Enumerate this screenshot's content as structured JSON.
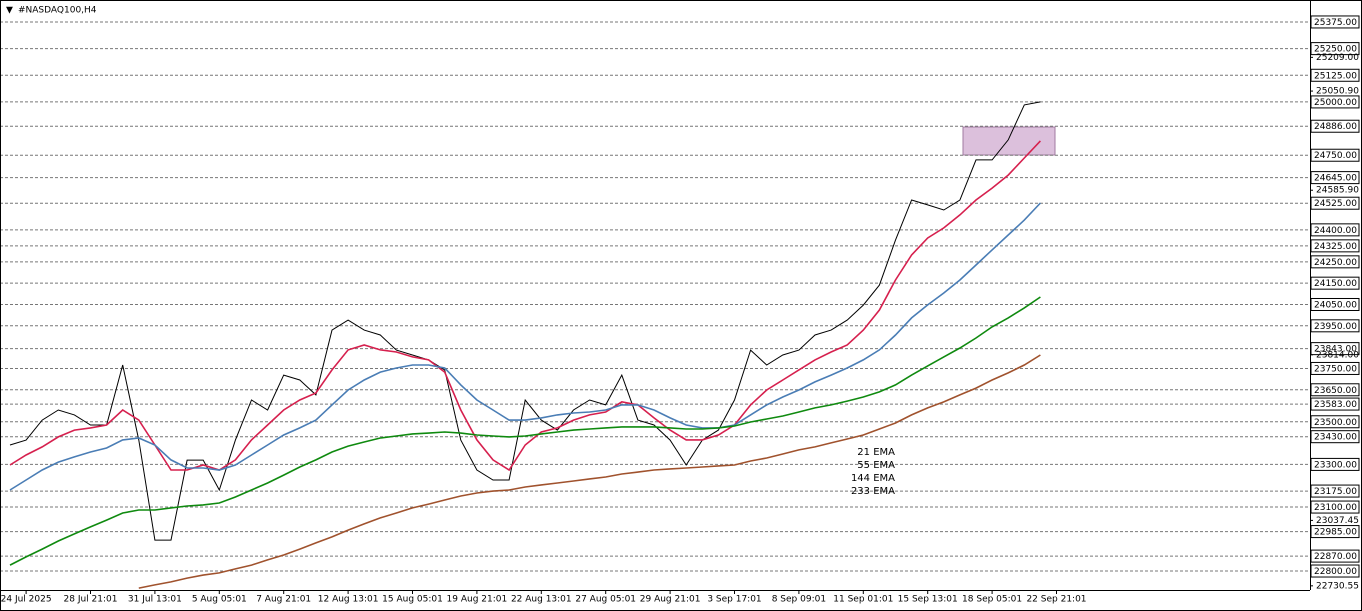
{
  "chart_data": {
    "type": "line",
    "title": "#NASDAQ100,H4",
    "categories": [
      null,
      "24 Jul 2025",
      null,
      null,
      null,
      "28 Jul 21:01",
      null,
      null,
      null,
      "31 Jul 13:01",
      null,
      null,
      null,
      "5 Aug 05:01",
      null,
      null,
      null,
      "7 Aug 21:01",
      null,
      null,
      null,
      "12 Aug 13:01",
      null,
      null,
      null,
      "15 Aug 05:01",
      null,
      null,
      null,
      "19 Aug 21:01",
      null,
      null,
      null,
      "22 Aug 13:01",
      null,
      null,
      null,
      "27 Aug 05:01",
      null,
      null,
      null,
      "29 Aug 21:01",
      null,
      null,
      null,
      "3 Sep 17:01",
      null,
      null,
      null,
      "8 Sep 09:01",
      null,
      null,
      null,
      "11 Sep 01:01",
      null,
      null,
      null,
      "15 Sep 13:01",
      null,
      null,
      null,
      "18 Sep 05:01",
      null,
      null,
      null,
      "22 Sep 21:01"
    ],
    "series": [
      {
        "color": "#000000",
        "values": [
          23391,
          23414,
          23508,
          23555,
          23532,
          23485,
          23485,
          23766,
          23414,
          22945,
          22945,
          23320,
          23320,
          23180,
          23414,
          23602,
          23555,
          23719,
          23696,
          23626,
          23930,
          23977,
          23930,
          23907,
          23836,
          23813,
          23790,
          23743,
          23414,
          23274,
          23227,
          23227,
          23602,
          23508,
          23461,
          23555,
          23602,
          23579,
          23719,
          23508,
          23485,
          23414,
          23297,
          23414,
          23461,
          23602,
          23836,
          23766,
          23813,
          23836,
          23907,
          23930,
          23977,
          24047,
          24141,
          24352,
          24540,
          24517,
          24493,
          24540,
          24728,
          24728,
          24822,
          24986,
          25000,
          null
        ]
      },
      {
        "name": "21 EMA",
        "color": "#d6204e",
        "values": [
          23297,
          23344,
          23382,
          23429,
          23461,
          23471,
          23485,
          23555,
          23508,
          23391,
          23274,
          23274,
          23297,
          23274,
          23321,
          23415,
          23485,
          23555,
          23602,
          23635,
          23743,
          23837,
          23860,
          23837,
          23827,
          23804,
          23790,
          23733,
          23555,
          23415,
          23321,
          23274,
          23391,
          23452,
          23471,
          23508,
          23532,
          23546,
          23593,
          23579,
          23518,
          23461,
          23415,
          23415,
          23438,
          23485,
          23579,
          23649,
          23696,
          23743,
          23790,
          23827,
          23860,
          23930,
          24024,
          24165,
          24282,
          24362,
          24409,
          24470,
          24540,
          24596,
          24657,
          24737,
          24817,
          null
        ]
      },
      {
        "name": "55 EMA",
        "color": "#4a7db5",
        "values": [
          23180,
          23227,
          23274,
          23311,
          23335,
          23358,
          23377,
          23415,
          23424,
          23391,
          23321,
          23283,
          23283,
          23274,
          23297,
          23344,
          23391,
          23438,
          23471,
          23508,
          23579,
          23649,
          23696,
          23733,
          23752,
          23766,
          23766,
          23752,
          23673,
          23602,
          23555,
          23508,
          23508,
          23518,
          23532,
          23541,
          23546,
          23555,
          23579,
          23579,
          23555,
          23518,
          23485,
          23471,
          23471,
          23485,
          23532,
          23579,
          23616,
          23649,
          23687,
          23719,
          23752,
          23790,
          23837,
          23907,
          23987,
          24048,
          24104,
          24165,
          24235,
          24306,
          24376,
          24446,
          24526,
          null
        ]
      },
      {
        "name": "144 EMA",
        "color": "#0f8a0f",
        "values": [
          22828,
          22866,
          22903,
          22941,
          22974,
          23007,
          23039,
          23072,
          23086,
          23086,
          23096,
          23105,
          23110,
          23119,
          23147,
          23180,
          23213,
          23250,
          23288,
          23321,
          23358,
          23386,
          23405,
          23424,
          23433,
          23443,
          23447,
          23452,
          23447,
          23438,
          23433,
          23429,
          23433,
          23443,
          23452,
          23461,
          23466,
          23471,
          23476,
          23476,
          23476,
          23471,
          23466,
          23466,
          23471,
          23480,
          23499,
          23513,
          23527,
          23546,
          23565,
          23579,
          23597,
          23616,
          23640,
          23673,
          23719,
          23762,
          23804,
          23846,
          23893,
          23945,
          23987,
          24034,
          24085,
          null
        ]
      },
      {
        "name": "233 EMA",
        "color": "#a0522d",
        "values": [
          null,
          null,
          null,
          null,
          null,
          null,
          null,
          null,
          22720,
          22735,
          22749,
          22767,
          22781,
          22791,
          22810,
          22828,
          22852,
          22875,
          22903,
          22932,
          22960,
          22992,
          23021,
          23049,
          23072,
          23096,
          23114,
          23133,
          23152,
          23166,
          23175,
          23180,
          23194,
          23204,
          23213,
          23222,
          23232,
          23241,
          23255,
          23264,
          23274,
          23279,
          23283,
          23288,
          23293,
          23297,
          23316,
          23330,
          23349,
          23368,
          23382,
          23401,
          23419,
          23438,
          23466,
          23494,
          23532,
          23565,
          23593,
          23626,
          23658,
          23696,
          23729,
          23766,
          23813,
          null
        ]
      }
    ],
    "ylim": [
      22711,
      25478
    ],
    "yticks": [
      {
        "value": 25375,
        "label": "25375.00"
      },
      {
        "value": 25250,
        "label": "25250.00"
      },
      {
        "value": 25125,
        "label": "25125.00"
      },
      {
        "value": 25000,
        "label": "25000.00"
      },
      {
        "value": 24886,
        "label": "24886.00"
      },
      {
        "value": 24750,
        "label": "24750.00"
      },
      {
        "value": 24645,
        "label": "24645.00"
      },
      {
        "value": 24525,
        "label": "24525.00"
      },
      {
        "value": 24400,
        "label": "24400.00"
      },
      {
        "value": 24325,
        "label": "24325.00"
      },
      {
        "value": 24250,
        "label": "24250.00"
      },
      {
        "value": 24150,
        "label": "24150.00"
      },
      {
        "value": 24050,
        "label": "24050.00"
      },
      {
        "value": 23950,
        "label": "23950.00"
      },
      {
        "value": 23843,
        "label": "23843.00"
      },
      {
        "value": 23750,
        "label": "23750.00"
      },
      {
        "value": 23650,
        "label": "23650.00"
      },
      {
        "value": 23583,
        "label": "23583.00"
      },
      {
        "value": 23500,
        "label": "23500.00"
      },
      {
        "value": 23430,
        "label": "23430.00"
      },
      {
        "value": 23300,
        "label": "23300.00"
      },
      {
        "value": 23175,
        "label": "23175.00"
      },
      {
        "value": 23100,
        "label": "23100.00"
      },
      {
        "value": 22985,
        "label": "22985.00"
      },
      {
        "value": 22870,
        "label": "22870.00"
      },
      {
        "value": 22800,
        "label": "22800.00"
      }
    ],
    "minor_yticks": [
      {
        "value": 25209,
        "label": "25209.00"
      },
      {
        "value": 25050.9,
        "label": "25050.90"
      },
      {
        "value": 24585.9,
        "label": "24585.90"
      },
      {
        "value": 23814,
        "label": "23814.00"
      },
      {
        "value": 23037.45,
        "label": "23037.45"
      },
      {
        "value": 22730.55,
        "label": "22730.55"
      }
    ],
    "grid": true
  }
}
